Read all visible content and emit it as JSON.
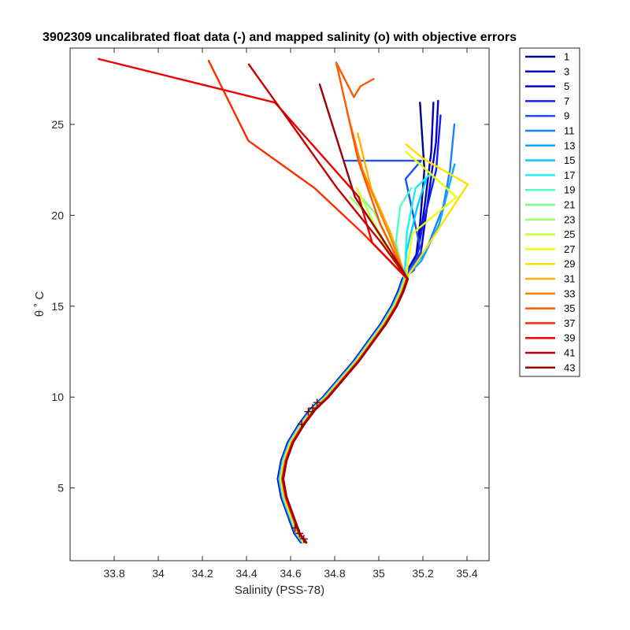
{
  "chart_data": {
    "type": "line",
    "title": "3902309 uncalibrated float data (-) and mapped salinity (o) with objective errors",
    "xlabel": "Salinity (PSS-78)",
    "ylabel": "θ ˚ C",
    "xlim": [
      33.6,
      35.5
    ],
    "ylim": [
      1.0,
      29.2
    ],
    "xticks": [
      33.8,
      34,
      34.2,
      34.4,
      34.6,
      34.8,
      35,
      35.2,
      35.4
    ],
    "xtick_labels": [
      "33.8",
      "34",
      "34.2",
      "34.4",
      "34.6",
      "34.8",
      "35",
      "35.2",
      "35.4"
    ],
    "yticks": [
      5,
      10,
      15,
      20,
      25
    ],
    "ytick_labels": [
      "5",
      "10",
      "15",
      "20",
      "25"
    ],
    "grid": false,
    "legend": {
      "placement": "outside-right",
      "entries": [
        "1",
        "3",
        "5",
        "7",
        "9",
        "11",
        "13",
        "15",
        "17",
        "19",
        "21",
        "23",
        "25",
        "27",
        "29",
        "31",
        "33",
        "35",
        "37",
        "39",
        "41",
        "43"
      ]
    },
    "colors": [
      "#00008f",
      "#0000b3",
      "#0000df",
      "#0f20ff",
      "#1a50ff",
      "#1a80ff",
      "#10a8ff",
      "#00d0ff",
      "#20f0ef",
      "#50ffc0",
      "#70ff90",
      "#a0ff60",
      "#c8ff30",
      "#f0ff00",
      "#ffe000",
      "#ffb000",
      "#ff8400",
      "#ff5800",
      "#ff2c00",
      "#ee0000",
      "#c60000",
      "#9c0000"
    ],
    "deep_profile": [
      [
        34.66,
        2.0
      ],
      [
        34.63,
        2.5
      ],
      [
        34.6,
        3.5
      ],
      [
        34.57,
        4.5
      ],
      [
        34.555,
        5.5
      ],
      [
        34.57,
        6.5
      ],
      [
        34.6,
        7.5
      ],
      [
        34.65,
        8.5
      ],
      [
        34.7,
        9.3
      ],
      [
        34.76,
        10.0
      ],
      [
        34.83,
        11.0
      ],
      [
        34.9,
        12.0
      ],
      [
        34.96,
        13.0
      ],
      [
        35.02,
        14.0
      ],
      [
        35.07,
        15.0
      ],
      [
        35.1,
        15.8
      ],
      [
        35.12,
        16.5
      ]
    ],
    "upper_profiles": [
      {
        "name": "1",
        "points": [
          [
            35.12,
            16.5
          ],
          [
            35.18,
            17.5
          ],
          [
            35.2,
            19.5
          ],
          [
            35.22,
            22.5
          ],
          [
            35.2,
            26.2
          ]
        ]
      },
      {
        "name": "3",
        "points": [
          [
            35.12,
            16.5
          ],
          [
            35.19,
            18.0
          ],
          [
            35.22,
            20.5
          ],
          [
            35.25,
            23.5
          ],
          [
            35.26,
            26.2
          ]
        ]
      },
      {
        "name": "5",
        "points": [
          [
            35.12,
            16.5
          ],
          [
            35.2,
            17.8
          ],
          [
            35.23,
            20.5
          ],
          [
            35.27,
            24.0
          ],
          [
            35.28,
            26.3
          ]
        ]
      },
      {
        "name": "7",
        "points": [
          [
            35.12,
            16.5
          ],
          [
            35.17,
            17.0
          ],
          [
            35.21,
            19.5
          ],
          [
            35.27,
            22.5
          ],
          [
            35.29,
            25.5
          ]
        ]
      },
      {
        "name": "9",
        "points": [
          [
            35.11,
            16.2
          ],
          [
            35.2,
            18.0
          ],
          [
            35.13,
            22.0
          ],
          [
            35.2,
            23.0
          ],
          [
            34.85,
            23.0
          ]
        ]
      },
      {
        "name": "11",
        "points": [
          [
            35.1,
            16.0
          ],
          [
            35.22,
            18.0
          ],
          [
            35.3,
            20.5
          ],
          [
            35.33,
            22.5
          ],
          [
            35.35,
            25.0
          ]
        ]
      },
      {
        "name": "13",
        "points": [
          [
            35.1,
            16.0
          ],
          [
            35.2,
            17.5
          ],
          [
            35.28,
            19.5
          ],
          [
            35.35,
            22.8
          ]
        ]
      },
      {
        "name": "15",
        "points": [
          [
            35.1,
            16.0
          ],
          [
            35.13,
            18.0
          ],
          [
            35.18,
            20.5
          ],
          [
            35.22,
            22.0
          ]
        ]
      },
      {
        "name": "17",
        "points": [
          [
            35.1,
            16.0
          ],
          [
            35.13,
            19.0
          ],
          [
            35.17,
            21.5
          ],
          [
            35.24,
            22.3
          ]
        ]
      },
      {
        "name": "19",
        "points": [
          [
            35.1,
            16.0
          ],
          [
            35.08,
            18.5
          ],
          [
            35.1,
            20.5
          ],
          [
            35.15,
            21.5
          ]
        ]
      },
      {
        "name": "21",
        "points": [
          [
            35.1,
            16.0
          ],
          [
            35.05,
            18.5
          ],
          [
            34.98,
            20.2
          ],
          [
            34.92,
            21.0
          ]
        ]
      },
      {
        "name": "23",
        "points": [
          [
            35.1,
            16.0
          ],
          [
            35.02,
            18.5
          ],
          [
            34.95,
            20.0
          ],
          [
            34.87,
            21.0
          ]
        ]
      },
      {
        "name": "25",
        "points": [
          [
            35.1,
            16.0
          ],
          [
            35.05,
            18.0
          ],
          [
            34.98,
            19.5
          ],
          [
            34.9,
            21.5
          ]
        ]
      },
      {
        "name": "27",
        "points": [
          [
            35.1,
            16.0
          ],
          [
            35.15,
            19.0
          ],
          [
            35.35,
            21.0
          ],
          [
            35.12,
            23.5
          ]
        ]
      },
      {
        "name": "29",
        "points": [
          [
            35.1,
            16.0
          ],
          [
            35.4,
            21.7
          ],
          [
            35.2,
            23.1
          ],
          [
            35.12,
            23.9
          ]
        ]
      },
      {
        "name": "31",
        "points": [
          [
            35.1,
            16.0
          ],
          [
            35.05,
            19.0
          ],
          [
            34.96,
            21.5
          ],
          [
            34.9,
            24.5
          ]
        ]
      },
      {
        "name": "33",
        "points": [
          [
            35.1,
            16.0
          ],
          [
            35.04,
            19.0
          ],
          [
            34.92,
            22.5
          ],
          [
            34.85,
            25.7
          ]
        ]
      },
      {
        "name": "35",
        "points": [
          [
            35.1,
            16.0
          ],
          [
            35.0,
            19.5
          ],
          [
            34.9,
            23.0
          ],
          [
            34.8,
            28.4
          ],
          [
            34.88,
            26.5
          ],
          [
            34.91,
            27.1
          ],
          [
            34.97,
            27.5
          ]
        ]
      },
      {
        "name": "37",
        "points": [
          [
            35.1,
            16.0
          ],
          [
            34.92,
            19.0
          ],
          [
            34.7,
            21.5
          ],
          [
            34.4,
            24.1
          ],
          [
            34.22,
            28.5
          ]
        ]
      },
      {
        "name": "39",
        "points": [
          [
            35.1,
            16.0
          ],
          [
            34.96,
            18.5
          ],
          [
            34.9,
            21.0
          ],
          [
            34.52,
            26.2
          ],
          [
            33.72,
            28.6
          ]
        ]
      },
      {
        "name": "41",
        "points": [
          [
            35.1,
            16.0
          ],
          [
            35.0,
            18.5
          ],
          [
            34.8,
            21.5
          ],
          [
            34.4,
            28.3
          ]
        ]
      },
      {
        "name": "43",
        "points": [
          [
            35.1,
            16.0
          ],
          [
            35.0,
            18.8
          ],
          [
            34.88,
            21.0
          ],
          [
            34.72,
            27.2
          ]
        ]
      }
    ],
    "mapped_cross_markers": [
      [
        34.64,
        2.5
      ],
      [
        34.66,
        2.2
      ],
      [
        34.62,
        2.8
      ],
      [
        34.65,
        8.5
      ],
      [
        34.7,
        9.4
      ],
      [
        34.72,
        9.7
      ],
      [
        34.68,
        9.2
      ]
    ]
  }
}
